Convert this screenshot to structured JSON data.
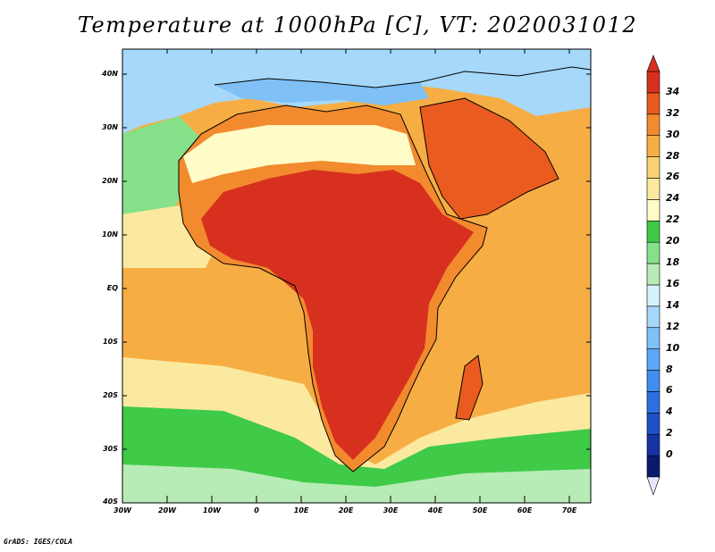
{
  "title": "Temperature at 1000hPa [C], VT: 2020031012",
  "credit": "GrADS: IGES/COLA",
  "lat_labels": [
    "40N",
    "30N",
    "20N",
    "10N",
    "EQ",
    "10S",
    "20S",
    "30S",
    "40S"
  ],
  "lon_labels": [
    "30W",
    "20W",
    "10W",
    "0",
    "10E",
    "20E",
    "30E",
    "40E",
    "50E",
    "60E",
    "70E"
  ],
  "colorbar": {
    "levels": [
      0,
      2,
      4,
      6,
      8,
      10,
      12,
      14,
      16,
      18,
      20,
      22,
      24,
      26,
      28,
      30,
      32,
      34
    ],
    "colors": [
      "#0b1a6e",
      "#1733a3",
      "#1e50c8",
      "#2c6fe0",
      "#3f8ef0",
      "#5aa8f5",
      "#7fc0f7",
      "#a6d8fa",
      "#d6f2fb",
      "#b8ecb6",
      "#86e08a",
      "#3fca48",
      "#fffcc7",
      "#fbe9a0",
      "#f8d272",
      "#f6ae44",
      "#f28a2e",
      "#ea5b1f",
      "#d7301f"
    ],
    "under_color": "#e6e6ff",
    "over_color": "#d7301f"
  },
  "palette": {
    "sea_warm": "#f6ae44",
    "sea_warm2": "#f8d272",
    "sea_mid": "#fbe9a0",
    "sea_cool": "#86e08a",
    "sea_cold": "#b8ecb6",
    "land_hot": "#d7301f",
    "land_very_hot": "#ea5b1f",
    "land_warm": "#f28a2e",
    "med_sea": "#7fc0f7",
    "north_cold": "#a6d8fa",
    "desert_pale": "#fffcc7",
    "southern_green": "#3fca48"
  }
}
